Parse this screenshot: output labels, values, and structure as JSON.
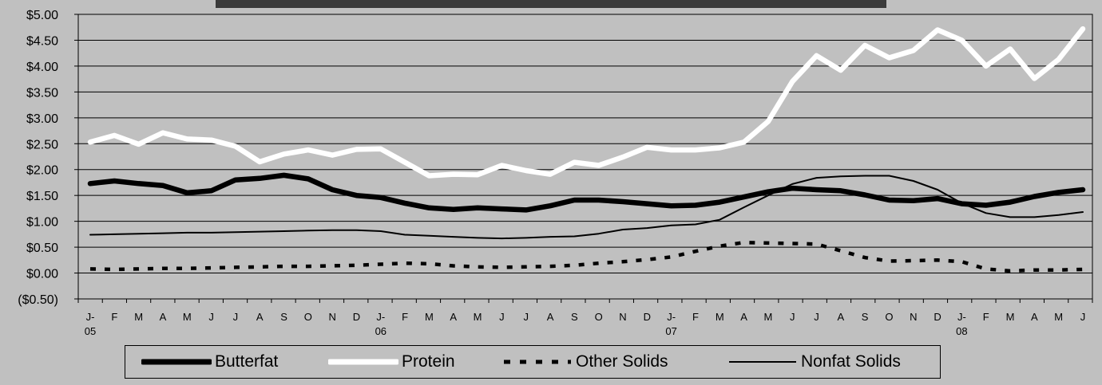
{
  "chart_data": {
    "type": "line",
    "title": "",
    "xlabel": "",
    "ylabel": "",
    "ylim": [
      -0.5,
      5.0
    ],
    "yticks": [
      "$5.00",
      "$4.50",
      "$4.00",
      "$3.50",
      "$3.00",
      "$2.50",
      "$2.00",
      "$1.50",
      "$1.00",
      "$0.50",
      "$0.00",
      "($0.50)"
    ],
    "ytick_values": [
      5.0,
      4.5,
      4.0,
      3.5,
      3.0,
      2.5,
      2.0,
      1.5,
      1.0,
      0.5,
      0.0,
      -0.5
    ],
    "categories": [
      "J-",
      "F",
      "M",
      "A",
      "M",
      "J",
      "J",
      "A",
      "S",
      "O",
      "N",
      "D",
      "J-",
      "F",
      "M",
      "A",
      "M",
      "J",
      "J",
      "A",
      "S",
      "O",
      "N",
      "D",
      "J-",
      "F",
      "M",
      "A",
      "M",
      "J",
      "J",
      "A",
      "S",
      "O",
      "N",
      "D",
      "J-",
      "F",
      "M",
      "A",
      "M",
      "J"
    ],
    "category_sublabels": [
      "05",
      "",
      "",
      "",
      "",
      "",
      "",
      "",
      "",
      "",
      "",
      "",
      "06",
      "",
      "",
      "",
      "",
      "",
      "",
      "",
      "",
      "",
      "",
      "",
      "07",
      "",
      "",
      "",
      "",
      "",
      "",
      "",
      "",
      "",
      "",
      "",
      "08",
      "",
      "",
      "",
      "",
      ""
    ],
    "grid": true,
    "legend_position": "bottom",
    "series": [
      {
        "name": "Butterfat",
        "color": "#000000",
        "style": "thick",
        "values": [
          1.73,
          1.78,
          1.73,
          1.69,
          1.55,
          1.59,
          1.8,
          1.83,
          1.89,
          1.82,
          1.61,
          1.5,
          1.46,
          1.35,
          1.26,
          1.23,
          1.26,
          1.24,
          1.22,
          1.3,
          1.41,
          1.41,
          1.38,
          1.34,
          1.3,
          1.31,
          1.37,
          1.47,
          1.57,
          1.64,
          1.61,
          1.59,
          1.51,
          1.41,
          1.4,
          1.44,
          1.34,
          1.31,
          1.37,
          1.48,
          1.56,
          1.61
        ]
      },
      {
        "name": "Protein",
        "color": "#ffffff",
        "style": "thick",
        "values": [
          2.53,
          2.66,
          2.49,
          2.71,
          2.59,
          2.57,
          2.45,
          2.15,
          2.3,
          2.38,
          2.28,
          2.39,
          2.4,
          2.14,
          1.88,
          1.91,
          1.9,
          2.08,
          1.98,
          1.91,
          2.14,
          2.08,
          2.24,
          2.43,
          2.38,
          2.38,
          2.42,
          2.53,
          2.93,
          3.7,
          4.2,
          3.92,
          4.4,
          4.16,
          4.3,
          4.7,
          4.5,
          4.0,
          4.33,
          3.76,
          4.13,
          4.72
        ]
      },
      {
        "name": "Other Solids",
        "color": "#000000",
        "style": "dashed",
        "values": [
          0.08,
          0.07,
          0.08,
          0.09,
          0.09,
          0.1,
          0.11,
          0.12,
          0.13,
          0.13,
          0.14,
          0.15,
          0.17,
          0.19,
          0.18,
          0.14,
          0.12,
          0.11,
          0.12,
          0.13,
          0.15,
          0.19,
          0.22,
          0.26,
          0.31,
          0.42,
          0.52,
          0.59,
          0.58,
          0.57,
          0.56,
          0.43,
          0.3,
          0.23,
          0.24,
          0.25,
          0.22,
          0.08,
          0.04,
          0.06,
          0.06,
          0.07
        ]
      },
      {
        "name": "Nonfat Solids",
        "color": "#000000",
        "style": "thin",
        "values": [
          0.74,
          0.75,
          0.76,
          0.77,
          0.78,
          0.78,
          0.79,
          0.8,
          0.81,
          0.82,
          0.83,
          0.83,
          0.81,
          0.74,
          0.72,
          0.7,
          0.68,
          0.67,
          0.68,
          0.7,
          0.71,
          0.76,
          0.84,
          0.87,
          0.92,
          0.94,
          1.03,
          1.27,
          1.5,
          1.72,
          1.84,
          1.87,
          1.88,
          1.88,
          1.78,
          1.61,
          1.35,
          1.16,
          1.08,
          1.08,
          1.12,
          1.18
        ]
      }
    ]
  }
}
